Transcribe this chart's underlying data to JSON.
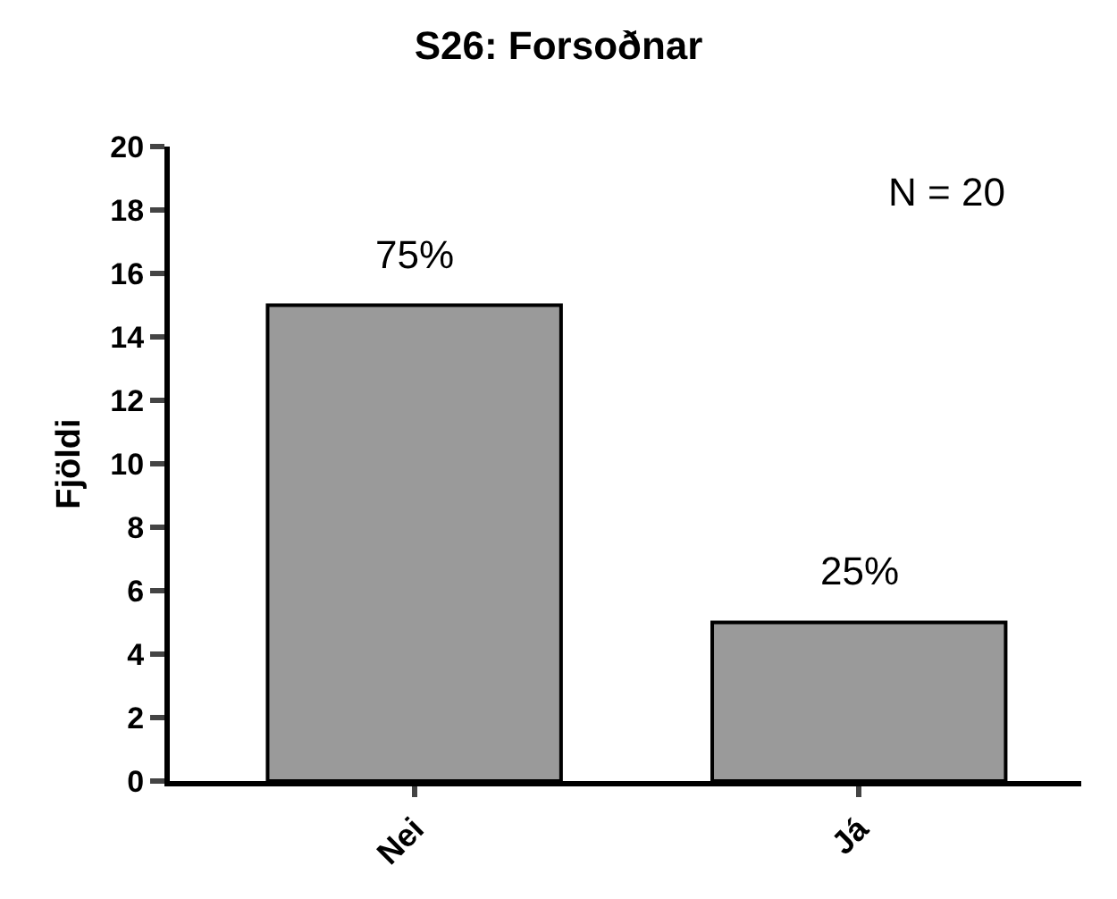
{
  "chart_data": {
    "type": "bar",
    "title": "S26: Forsoðnar",
    "ylabel": "Fjöldi",
    "categories": [
      "Nei",
      "Já"
    ],
    "values": [
      15,
      5
    ],
    "color": "#9a9a9a",
    "ylim": [
      0,
      20
    ],
    "yticks": [
      0,
      2,
      4,
      6,
      8,
      10,
      12,
      14,
      16,
      18,
      20
    ],
    "grid": false,
    "legend": false,
    "annotations": [
      "N = 20",
      {
        "text": "75%",
        "x": "Nei",
        "y": 15
      },
      {
        "text": "25%",
        "x": "Já",
        "y": 5
      }
    ]
  }
}
